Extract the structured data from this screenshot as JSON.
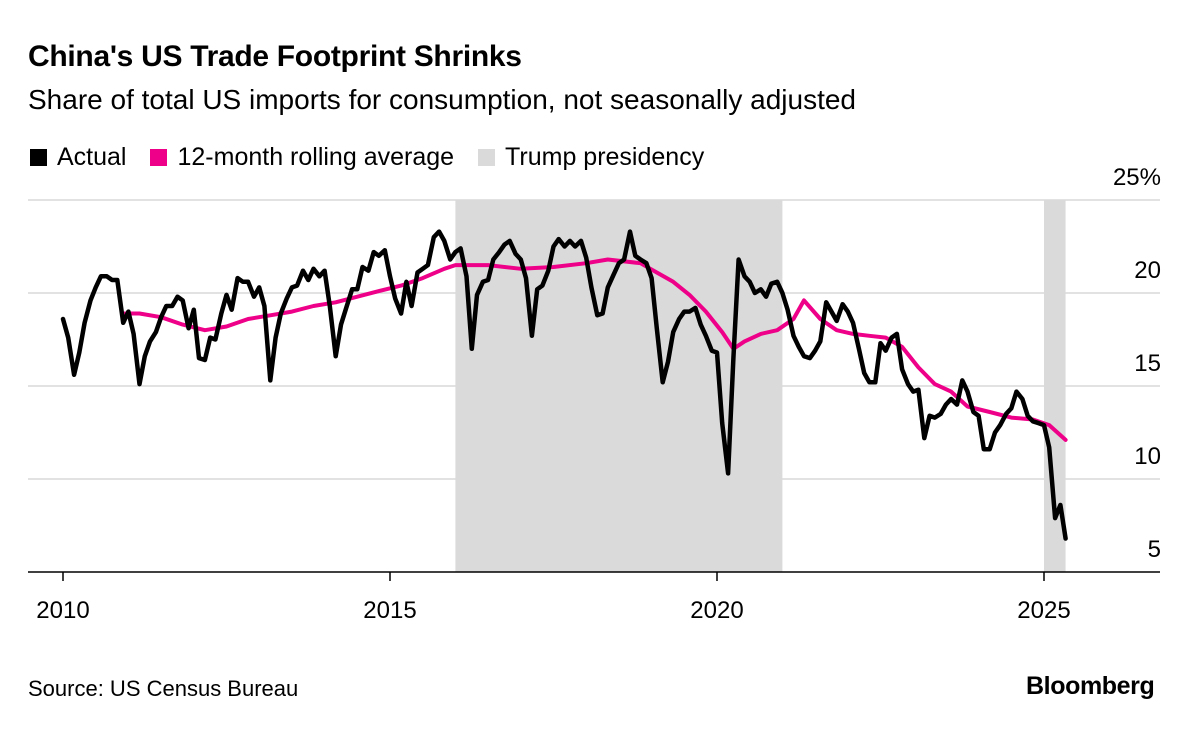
{
  "title": "China's US Trade Footprint Shrinks",
  "subtitle": "Share of total US imports for consumption, not seasonally adjusted",
  "source": "Source: US Census Bureau",
  "brand": "Bloomberg",
  "legend": [
    {
      "label": "Actual",
      "color": "#000000"
    },
    {
      "label": "12-month rolling average",
      "color": "#ee0088"
    },
    {
      "label": "Trump presidency",
      "color": "#dadada"
    }
  ],
  "chart_data": {
    "type": "line",
    "title": "China's US Trade Footprint Shrinks",
    "ylabel": "Share of total US imports for consumption (%)",
    "xlabel": "",
    "xlim": [
      2009.55,
      2026.4
    ],
    "ylim": [
      5,
      25
    ],
    "x_ticks": [
      2010,
      2015,
      2020,
      2025
    ],
    "x_tick_labels": [
      "2010",
      "2015",
      "2020",
      "2025"
    ],
    "y_ticks": [
      5,
      10,
      15,
      20,
      25
    ],
    "y_tick_labels": [
      "5",
      "10",
      "15",
      "20",
      "25%"
    ],
    "shaded_periods": [
      {
        "label": "Trump presidency",
        "start": 2016.0,
        "end": 2021.0
      },
      {
        "label": "Trump presidency",
        "start": 2025.0,
        "end": 2025.33
      }
    ],
    "series": [
      {
        "name": "Actual",
        "color": "#000000",
        "points": [
          [
            2010.0,
            18.6
          ],
          [
            2010.08,
            17.6
          ],
          [
            2010.17,
            15.6
          ],
          [
            2010.25,
            16.8
          ],
          [
            2010.33,
            18.4
          ],
          [
            2010.42,
            19.6
          ],
          [
            2010.5,
            20.3
          ],
          [
            2010.58,
            20.9
          ],
          [
            2010.67,
            20.9
          ],
          [
            2010.75,
            20.7
          ],
          [
            2010.83,
            20.7
          ],
          [
            2010.92,
            18.4
          ],
          [
            2011.0,
            19.0
          ],
          [
            2011.08,
            17.8
          ],
          [
            2011.17,
            15.1
          ],
          [
            2011.25,
            16.6
          ],
          [
            2011.33,
            17.4
          ],
          [
            2011.42,
            17.9
          ],
          [
            2011.5,
            18.7
          ],
          [
            2011.58,
            19.3
          ],
          [
            2011.67,
            19.3
          ],
          [
            2011.75,
            19.8
          ],
          [
            2011.83,
            19.6
          ],
          [
            2011.92,
            18.1
          ],
          [
            2012.0,
            19.1
          ],
          [
            2012.08,
            16.5
          ],
          [
            2012.17,
            16.4
          ],
          [
            2012.25,
            17.6
          ],
          [
            2012.33,
            17.5
          ],
          [
            2012.42,
            18.9
          ],
          [
            2012.5,
            19.9
          ],
          [
            2012.58,
            19.1
          ],
          [
            2012.67,
            20.8
          ],
          [
            2012.75,
            20.6
          ],
          [
            2012.83,
            20.6
          ],
          [
            2012.92,
            19.8
          ],
          [
            2013.0,
            20.3
          ],
          [
            2013.08,
            19.3
          ],
          [
            2013.17,
            15.3
          ],
          [
            2013.25,
            17.6
          ],
          [
            2013.33,
            18.9
          ],
          [
            2013.42,
            19.7
          ],
          [
            2013.5,
            20.3
          ],
          [
            2013.58,
            20.4
          ],
          [
            2013.67,
            21.2
          ],
          [
            2013.75,
            20.7
          ],
          [
            2013.83,
            21.3
          ],
          [
            2013.92,
            20.9
          ],
          [
            2014.0,
            21.2
          ],
          [
            2014.08,
            19.3
          ],
          [
            2014.17,
            16.6
          ],
          [
            2014.25,
            18.3
          ],
          [
            2014.33,
            19.2
          ],
          [
            2014.42,
            20.2
          ],
          [
            2014.5,
            20.2
          ],
          [
            2014.58,
            21.4
          ],
          [
            2014.67,
            21.2
          ],
          [
            2014.75,
            22.2
          ],
          [
            2014.83,
            22.0
          ],
          [
            2014.92,
            22.3
          ],
          [
            2015.0,
            20.9
          ],
          [
            2015.08,
            19.7
          ],
          [
            2015.17,
            18.9
          ],
          [
            2015.25,
            20.6
          ],
          [
            2015.33,
            19.3
          ],
          [
            2015.42,
            21.1
          ],
          [
            2015.5,
            21.3
          ],
          [
            2015.58,
            21.5
          ],
          [
            2015.67,
            23.0
          ],
          [
            2015.75,
            23.3
          ],
          [
            2015.83,
            22.8
          ],
          [
            2015.92,
            21.8
          ],
          [
            2016.0,
            22.2
          ],
          [
            2016.08,
            22.4
          ],
          [
            2016.17,
            20.9
          ],
          [
            2016.25,
            17.0
          ],
          [
            2016.33,
            19.9
          ],
          [
            2016.42,
            20.6
          ],
          [
            2016.5,
            20.7
          ],
          [
            2016.58,
            21.8
          ],
          [
            2016.67,
            22.2
          ],
          [
            2016.75,
            22.6
          ],
          [
            2016.83,
            22.8
          ],
          [
            2016.92,
            22.1
          ],
          [
            2017.0,
            21.8
          ],
          [
            2017.08,
            20.8
          ],
          [
            2017.17,
            17.7
          ],
          [
            2017.25,
            20.2
          ],
          [
            2017.33,
            20.4
          ],
          [
            2017.42,
            21.2
          ],
          [
            2017.5,
            22.5
          ],
          [
            2017.58,
            22.9
          ],
          [
            2017.67,
            22.5
          ],
          [
            2017.75,
            22.8
          ],
          [
            2017.83,
            22.5
          ],
          [
            2017.92,
            22.8
          ],
          [
            2018.0,
            21.9
          ],
          [
            2018.08,
            20.3
          ],
          [
            2018.17,
            18.8
          ],
          [
            2018.25,
            18.9
          ],
          [
            2018.33,
            20.3
          ],
          [
            2018.42,
            21.0
          ],
          [
            2018.5,
            21.6
          ],
          [
            2018.58,
            21.8
          ],
          [
            2018.67,
            23.3
          ],
          [
            2018.75,
            22.0
          ],
          [
            2018.83,
            21.8
          ],
          [
            2018.92,
            21.6
          ],
          [
            2019.0,
            20.8
          ],
          [
            2019.08,
            18.1
          ],
          [
            2019.17,
            15.2
          ],
          [
            2019.25,
            16.3
          ],
          [
            2019.33,
            17.9
          ],
          [
            2019.42,
            18.6
          ],
          [
            2019.5,
            19.0
          ],
          [
            2019.58,
            19.0
          ],
          [
            2019.67,
            19.2
          ],
          [
            2019.75,
            18.3
          ],
          [
            2019.83,
            17.7
          ],
          [
            2019.92,
            16.9
          ],
          [
            2020.0,
            16.8
          ],
          [
            2020.08,
            13.0
          ],
          [
            2020.17,
            10.3
          ],
          [
            2020.25,
            16.5
          ],
          [
            2020.33,
            21.8
          ],
          [
            2020.42,
            20.9
          ],
          [
            2020.5,
            20.6
          ],
          [
            2020.58,
            20.0
          ],
          [
            2020.67,
            20.2
          ],
          [
            2020.75,
            19.8
          ],
          [
            2020.83,
            20.5
          ],
          [
            2020.92,
            20.6
          ],
          [
            2021.0,
            20.0
          ],
          [
            2021.08,
            19.1
          ],
          [
            2021.17,
            17.7
          ],
          [
            2021.25,
            17.1
          ],
          [
            2021.33,
            16.6
          ],
          [
            2021.42,
            16.5
          ],
          [
            2021.5,
            16.9
          ],
          [
            2021.58,
            17.4
          ],
          [
            2021.67,
            19.5
          ],
          [
            2021.75,
            19.0
          ],
          [
            2021.83,
            18.5
          ],
          [
            2021.92,
            19.4
          ],
          [
            2022.0,
            19.0
          ],
          [
            2022.08,
            18.4
          ],
          [
            2022.17,
            17.0
          ],
          [
            2022.25,
            15.7
          ],
          [
            2022.33,
            15.2
          ],
          [
            2022.42,
            15.2
          ],
          [
            2022.5,
            17.3
          ],
          [
            2022.58,
            16.9
          ],
          [
            2022.67,
            17.6
          ],
          [
            2022.75,
            17.8
          ],
          [
            2022.83,
            15.9
          ],
          [
            2022.92,
            15.1
          ],
          [
            2023.0,
            14.7
          ],
          [
            2023.08,
            14.8
          ],
          [
            2023.17,
            12.2
          ],
          [
            2023.25,
            13.4
          ],
          [
            2023.33,
            13.3
          ],
          [
            2023.42,
            13.5
          ],
          [
            2023.5,
            14.0
          ],
          [
            2023.58,
            14.3
          ],
          [
            2023.67,
            14.0
          ],
          [
            2023.75,
            15.3
          ],
          [
            2023.83,
            14.7
          ],
          [
            2023.92,
            13.6
          ],
          [
            2024.0,
            13.4
          ],
          [
            2024.08,
            11.6
          ],
          [
            2024.17,
            11.6
          ],
          [
            2024.25,
            12.5
          ],
          [
            2024.33,
            12.9
          ],
          [
            2024.42,
            13.5
          ],
          [
            2024.5,
            13.8
          ],
          [
            2024.58,
            14.7
          ],
          [
            2024.67,
            14.3
          ],
          [
            2024.75,
            13.4
          ],
          [
            2024.83,
            13.1
          ],
          [
            2024.92,
            13.0
          ],
          [
            2025.0,
            12.9
          ],
          [
            2025.08,
            11.7
          ],
          [
            2025.17,
            7.9
          ],
          [
            2025.25,
            8.6
          ],
          [
            2025.33,
            6.8
          ]
        ]
      },
      {
        "name": "12-month rolling average",
        "color": "#ee0088",
        "points": [
          [
            2010.92,
            18.9
          ],
          [
            2011.17,
            18.9
          ],
          [
            2011.5,
            18.7
          ],
          [
            2011.83,
            18.3
          ],
          [
            2012.17,
            18.0
          ],
          [
            2012.5,
            18.2
          ],
          [
            2012.83,
            18.6
          ],
          [
            2013.17,
            18.8
          ],
          [
            2013.5,
            19.0
          ],
          [
            2013.83,
            19.3
          ],
          [
            2014.17,
            19.5
          ],
          [
            2014.5,
            19.8
          ],
          [
            2014.83,
            20.1
          ],
          [
            2015.17,
            20.4
          ],
          [
            2015.5,
            20.8
          ],
          [
            2015.83,
            21.3
          ],
          [
            2016.0,
            21.5
          ],
          [
            2016.5,
            21.5
          ],
          [
            2017.0,
            21.3
          ],
          [
            2017.5,
            21.4
          ],
          [
            2018.0,
            21.6
          ],
          [
            2018.33,
            21.8
          ],
          [
            2018.83,
            21.6
          ],
          [
            2019.08,
            21.1
          ],
          [
            2019.33,
            20.6
          ],
          [
            2019.58,
            19.9
          ],
          [
            2019.83,
            19.0
          ],
          [
            2020.08,
            17.9
          ],
          [
            2020.25,
            17.0
          ],
          [
            2020.42,
            17.4
          ],
          [
            2020.67,
            17.8
          ],
          [
            2020.92,
            18.0
          ],
          [
            2021.17,
            18.6
          ],
          [
            2021.33,
            19.6
          ],
          [
            2021.58,
            18.6
          ],
          [
            2021.83,
            18.0
          ],
          [
            2022.08,
            17.8
          ],
          [
            2022.33,
            17.7
          ],
          [
            2022.58,
            17.6
          ],
          [
            2022.83,
            17.1
          ],
          [
            2023.08,
            16.0
          ],
          [
            2023.33,
            15.1
          ],
          [
            2023.58,
            14.7
          ],
          [
            2023.83,
            13.9
          ],
          [
            2024.17,
            13.6
          ],
          [
            2024.5,
            13.3
          ],
          [
            2024.83,
            13.2
          ],
          [
            2025.08,
            12.9
          ],
          [
            2025.33,
            12.1
          ]
        ]
      }
    ]
  }
}
